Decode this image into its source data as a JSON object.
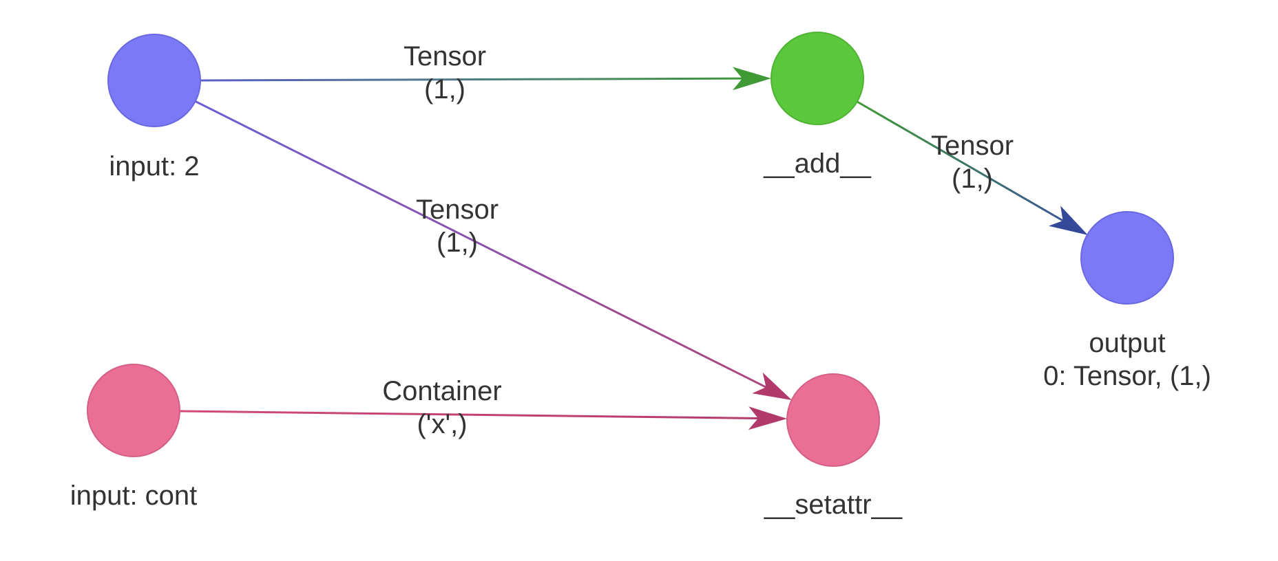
{
  "nodes": [
    {
      "id": "input_2",
      "label_lines": [
        "input: 2"
      ],
      "color": "#7b79f5",
      "stroke": "#6a68e0"
    },
    {
      "id": "add",
      "label_lines": [
        "__add__"
      ],
      "color": "#5ac73c",
      "stroke": "#4fb332"
    },
    {
      "id": "output",
      "label_lines": [
        "output",
        "0: Tensor, (1,)"
      ],
      "color": "#7b79f5",
      "stroke": "#6a68e0"
    },
    {
      "id": "input_cont",
      "label_lines": [
        "input: cont"
      ],
      "color": "#ea6e95",
      "stroke": "#d45f84"
    },
    {
      "id": "setattr",
      "label_lines": [
        "__setattr__"
      ],
      "color": "#ea6e95",
      "stroke": "#d45f84"
    }
  ],
  "edges": [
    {
      "id": "input2-add",
      "from": "input_2",
      "to": "add",
      "label_lines": [
        "Tensor",
        "(1,)"
      ],
      "color_from": "#5b5fc7",
      "color_to": "#3f9a35",
      "arrow_color": "#3f9a35"
    },
    {
      "id": "add-output",
      "from": "add",
      "to": "output",
      "label_lines": [
        "Tensor",
        "(1,)"
      ],
      "color_from": "#3f9a35",
      "color_to": "#3a4fa0",
      "arrow_color": "#34499a"
    },
    {
      "id": "input2-setattr",
      "from": "input_2",
      "to": "setattr",
      "label_lines": [
        "Tensor",
        "(1,)"
      ],
      "color_from": "#6b5fd6",
      "color_to": "#b0457a",
      "arrow_color": "#b23a6b"
    },
    {
      "id": "inputcont-setattr",
      "from": "input_cont",
      "to": "setattr",
      "label_lines": [
        "Container",
        "('x',)"
      ],
      "color_from": "#d04a7a",
      "color_to": "#b23a6b",
      "arrow_color": "#b23a6b"
    }
  ]
}
